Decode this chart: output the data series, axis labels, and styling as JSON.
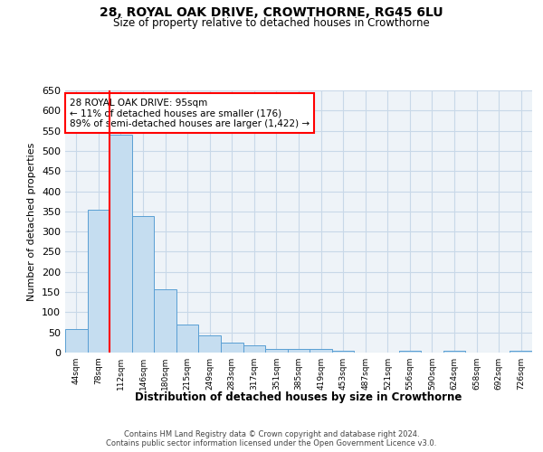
{
  "title1": "28, ROYAL OAK DRIVE, CROWTHORNE, RG45 6LU",
  "title2": "Size of property relative to detached houses in Crowthorne",
  "xlabel": "Distribution of detached houses by size in Crowthorne",
  "ylabel": "Number of detached properties",
  "bar_color": "#c5ddf0",
  "bar_edge_color": "#5a9fd4",
  "grid_color": "#c8d8e8",
  "bg_color": "#eef3f8",
  "categories": [
    "44sqm",
    "78sqm",
    "112sqm",
    "146sqm",
    "180sqm",
    "215sqm",
    "249sqm",
    "283sqm",
    "317sqm",
    "351sqm",
    "385sqm",
    "419sqm",
    "453sqm",
    "487sqm",
    "521sqm",
    "556sqm",
    "590sqm",
    "624sqm",
    "658sqm",
    "692sqm",
    "726sqm"
  ],
  "values": [
    58,
    355,
    540,
    338,
    157,
    70,
    42,
    25,
    17,
    10,
    9,
    10,
    5,
    0,
    0,
    5,
    0,
    5,
    0,
    0,
    5
  ],
  "red_line_x": 1.5,
  "annotation_text": "28 ROYAL OAK DRIVE: 95sqm\n← 11% of detached houses are smaller (176)\n89% of semi-detached houses are larger (1,422) →",
  "ylim": [
    0,
    650
  ],
  "yticks": [
    0,
    50,
    100,
    150,
    200,
    250,
    300,
    350,
    400,
    450,
    500,
    550,
    600,
    650
  ],
  "footer1": "Contains HM Land Registry data © Crown copyright and database right 2024.",
  "footer2": "Contains public sector information licensed under the Open Government Licence v3.0."
}
